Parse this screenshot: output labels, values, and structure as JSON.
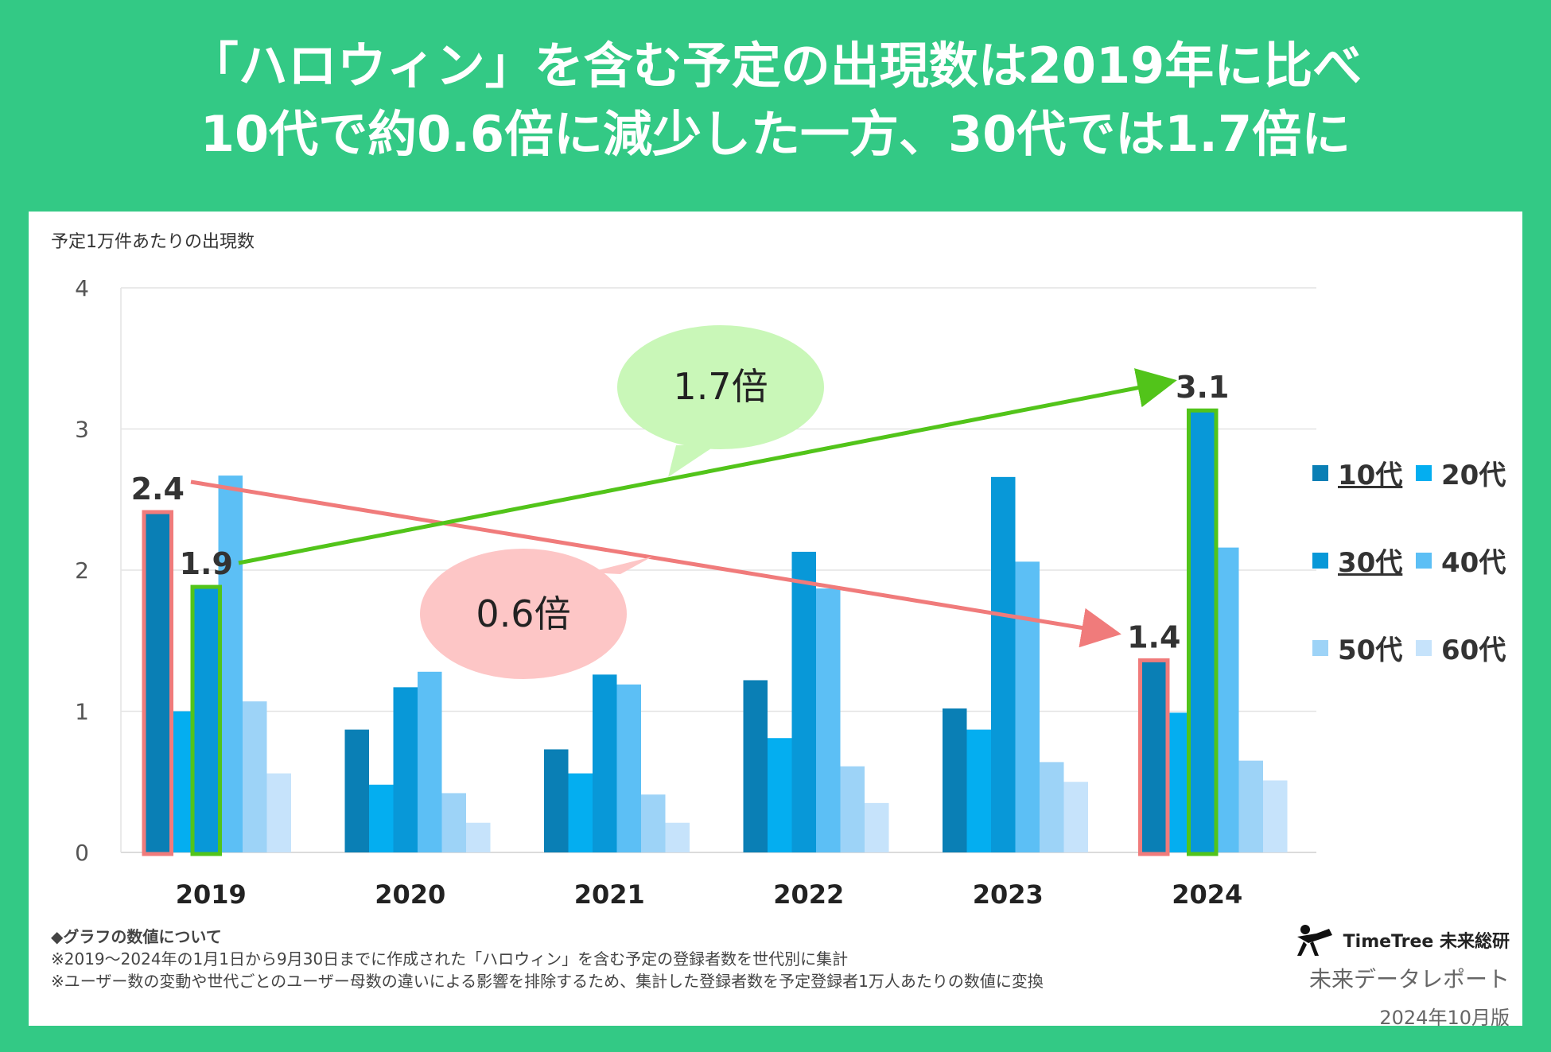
{
  "headline": {
    "line1": "「ハロウィン」を含む予定の出現数は2019年に比べ",
    "line2": "10代で約0.6倍に減少した一方、30代では1.7倍に"
  },
  "chart_data": {
    "type": "bar",
    "ylabel": "予定1万件あたりの出現数",
    "ylim": [
      0,
      4
    ],
    "yticks": [
      "0",
      "1",
      "2",
      "3",
      "4"
    ],
    "categories": [
      "2019",
      "2020",
      "2021",
      "2022",
      "2023",
      "2024"
    ],
    "series": [
      {
        "name": "10代",
        "color": "#0a7fb5",
        "values": [
          2.4,
          0.87,
          0.73,
          1.22,
          1.02,
          1.35
        ]
      },
      {
        "name": "20代",
        "color": "#04aef0",
        "values": [
          1.0,
          0.48,
          0.56,
          0.81,
          0.87,
          0.99
        ]
      },
      {
        "name": "30代",
        "color": "#0898d8",
        "values": [
          1.87,
          1.17,
          1.26,
          2.13,
          2.66,
          3.12
        ]
      },
      {
        "name": "40代",
        "color": "#5cbff5",
        "values": [
          2.67,
          1.28,
          1.19,
          1.87,
          2.06,
          2.16
        ]
      },
      {
        "name": "50代",
        "color": "#9dd3f7",
        "values": [
          1.07,
          0.42,
          0.41,
          0.61,
          0.64,
          0.65
        ]
      },
      {
        "name": "60代",
        "color": "#c6e3fb",
        "values": [
          0.56,
          0.21,
          0.21,
          0.35,
          0.5,
          0.51
        ]
      }
    ],
    "data_labels": {
      "teen_2019": "2.4",
      "thirties_2019": "1.9",
      "teen_2024": "1.4",
      "thirties_2024": "3.1"
    },
    "annotations": {
      "increase": "1.7倍",
      "decrease": "0.6倍"
    },
    "colors": {
      "red_arrow": "#f07b7b",
      "green_arrow": "#52c41a",
      "red_bubble": "#fdc6c6",
      "green_bubble": "#c9f7b8"
    }
  },
  "legend": [
    {
      "label": "10代",
      "underline": true,
      "color": "#0a7fb5"
    },
    {
      "label": "20代",
      "underline": false,
      "color": "#04aef0"
    },
    {
      "label": "30代",
      "underline": true,
      "color": "#0898d8"
    },
    {
      "label": "40代",
      "underline": false,
      "color": "#5cbff5"
    },
    {
      "label": "50代",
      "underline": false,
      "color": "#9dd3f7"
    },
    {
      "label": "60代",
      "underline": false,
      "color": "#c6e3fb"
    }
  ],
  "notes": {
    "heading": "◆グラフの数値について",
    "line1": "※2019〜2024年の1月1日から9月30日までに作成された「ハロウィン」を含む予定の登録者数を世代別に集計",
    "line2": "※ユーザー数の変動や世代ごとのユーザー母数の違いによる影響を排除するため、集計した登録者数を予定登録者1万人あたりの数値に変換"
  },
  "brand": {
    "logo_text": "TimeTree 未来総研",
    "report": "未来データレポート",
    "edition": "2024年10月版"
  }
}
